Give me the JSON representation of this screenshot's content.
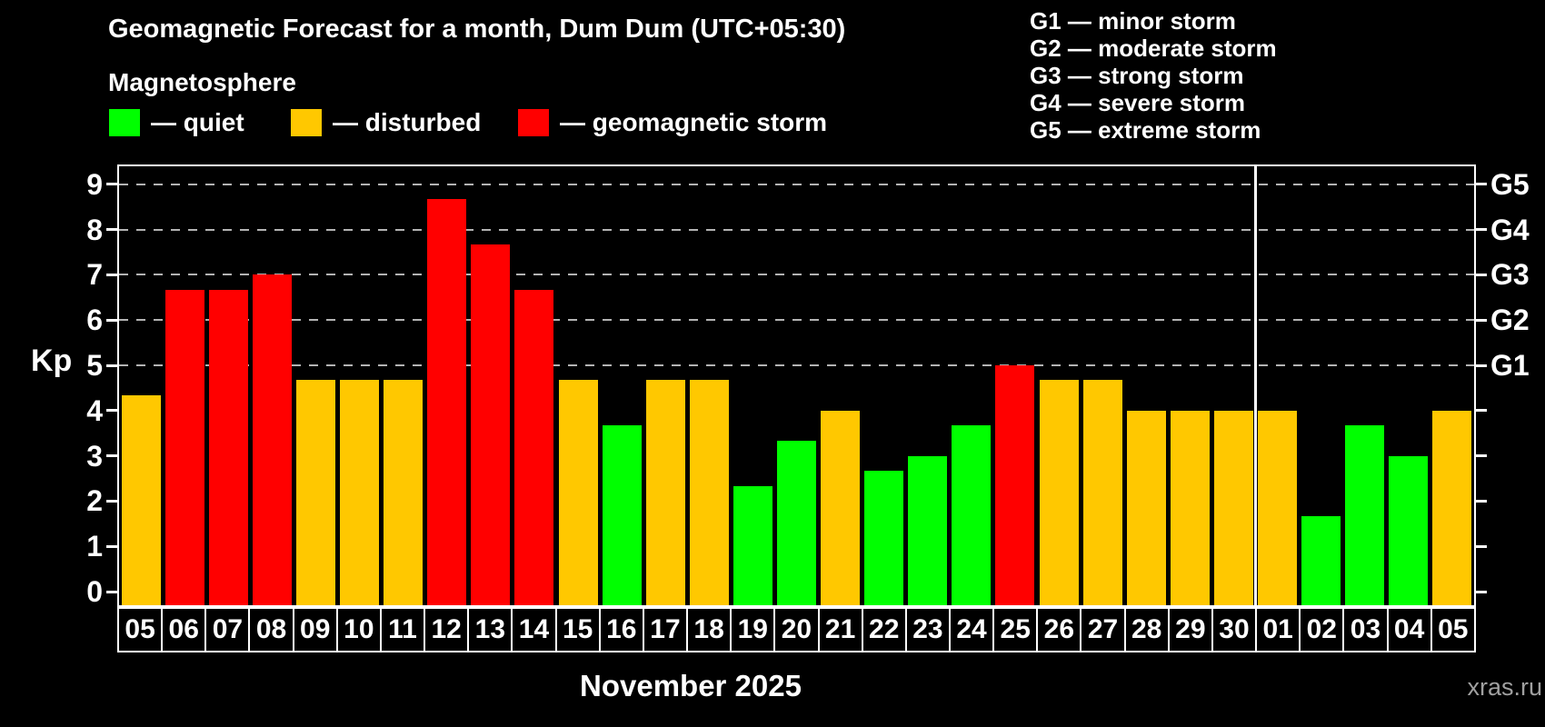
{
  "header": {
    "title": "Geomagnetic Forecast for a month, Dum Dum (UTC+05:30)",
    "subtitle": "Magnetosphere"
  },
  "legend": {
    "items": [
      {
        "label": "— quiet",
        "status": "quiet"
      },
      {
        "label": "— disturbed",
        "status": "disturbed"
      },
      {
        "label": "— geomagnetic storm",
        "status": "storm"
      }
    ]
  },
  "storm_scale_legend": [
    "G1 — minor storm",
    "G2 — moderate storm",
    "G3 — strong storm",
    "G4 — severe storm",
    "G5 — extreme storm"
  ],
  "axes": {
    "y_label": "Kp",
    "y_ticks": [
      0,
      1,
      2,
      3,
      4,
      5,
      6,
      7,
      8,
      9
    ],
    "right_tick_labels": [
      {
        "kp": 9,
        "label": "G5"
      },
      {
        "kp": 8,
        "label": "G4"
      },
      {
        "kp": 7,
        "label": "G3"
      },
      {
        "kp": 6,
        "label": "G2"
      },
      {
        "kp": 5,
        "label": "G1"
      }
    ],
    "x_label": "November 2025"
  },
  "footer": {
    "watermark": "xras.ru"
  },
  "colors": {
    "background": "#000000",
    "text": "#ffffff",
    "grid": "#b3b3b3",
    "quiet": "#00ff00",
    "disturbed": "#ffc800",
    "storm": "#ff0000",
    "watermark": "#a0a0a0"
  },
  "chart_data": {
    "type": "bar",
    "title": "Geomagnetic Forecast for a month, Dum Dum (UTC+05:30)",
    "subtitle": "Magnetosphere",
    "xlabel": "November 2025",
    "ylabel": "Kp",
    "ylim": [
      0,
      9
    ],
    "grid": "dashed horizontal at Kp 5-9 only",
    "gridlines_at": [
      5,
      6,
      7,
      8,
      9
    ],
    "categories": [
      "05",
      "06",
      "07",
      "08",
      "09",
      "10",
      "11",
      "12",
      "13",
      "14",
      "15",
      "16",
      "17",
      "18",
      "19",
      "20",
      "21",
      "22",
      "23",
      "24",
      "25",
      "26",
      "27",
      "28",
      "29",
      "30",
      "01",
      "02",
      "03",
      "04",
      "05"
    ],
    "values": [
      4.33,
      6.67,
      6.67,
      7,
      4.67,
      4.67,
      4.67,
      8.67,
      7.67,
      6.67,
      4.67,
      3.67,
      4.67,
      4.67,
      2.33,
      3.33,
      4,
      2.67,
      3,
      3.67,
      5,
      4.67,
      4.67,
      4,
      4,
      4,
      4,
      1.67,
      3.67,
      3,
      4
    ],
    "statuses": [
      "disturbed",
      "storm",
      "storm",
      "storm",
      "disturbed",
      "disturbed",
      "disturbed",
      "storm",
      "storm",
      "storm",
      "disturbed",
      "quiet",
      "disturbed",
      "disturbed",
      "quiet",
      "quiet",
      "disturbed",
      "quiet",
      "quiet",
      "quiet",
      "storm",
      "disturbed",
      "disturbed",
      "disturbed",
      "disturbed",
      "disturbed",
      "disturbed",
      "quiet",
      "quiet",
      "quiet",
      "disturbed"
    ],
    "month_separator_after_index": 25,
    "legend_position": "top-left",
    "right_axis_labels": [
      "G5",
      "G4",
      "G3",
      "G2",
      "G1"
    ]
  }
}
